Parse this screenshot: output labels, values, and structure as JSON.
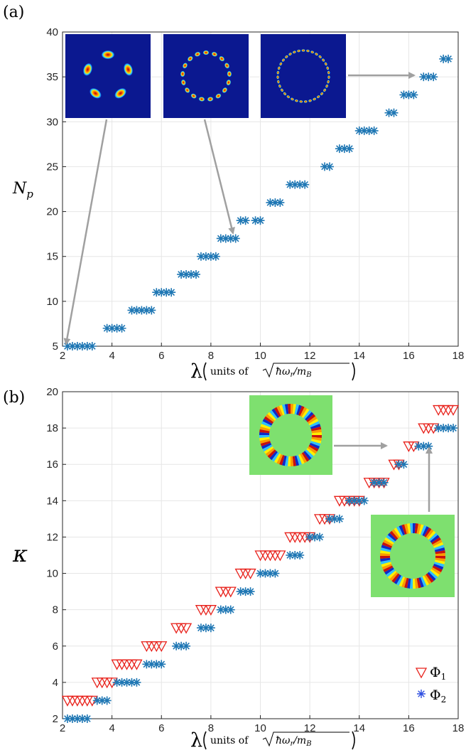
{
  "chart_data": [
    {
      "panel_label": "(a)",
      "type": "scatter",
      "xlabel_symbol": "λ",
      "xlabel_units": "units of",
      "xlabel_sqrt": "ħω",
      "xlabel_sqrt_sub_r": "r",
      "xlabel_sqrt_slash": "/m",
      "xlabel_sqrt_sub_b": "B",
      "ylabel_main": "N",
      "ylabel_sub": "p",
      "xlim": [
        2,
        18
      ],
      "ylim": [
        5,
        40
      ],
      "xticks": [
        "2",
        "4",
        "6",
        "8",
        "10",
        "12",
        "14",
        "16",
        "18"
      ],
      "yticks": [
        "5",
        "10",
        "15",
        "20",
        "25",
        "30",
        "35",
        "40"
      ],
      "grid": true,
      "series": [
        {
          "marker": "asterisk",
          "color": "#1f77b4",
          "x": [
            2.2,
            2.4,
            2.6,
            2.8,
            3.0,
            3.2,
            3.8,
            4.0,
            4.2,
            4.4,
            4.8,
            5.0,
            5.2,
            5.4,
            5.6,
            5.8,
            6.0,
            6.2,
            6.4,
            6.8,
            7.0,
            7.2,
            7.4,
            7.6,
            7.8,
            8.0,
            8.2,
            8.4,
            8.6,
            8.8,
            9.0,
            9.2,
            9.4,
            9.8,
            10.0,
            10.4,
            10.6,
            10.8,
            11.2,
            11.4,
            11.6,
            11.8,
            12.6,
            12.8,
            13.2,
            13.4,
            13.6,
            14.0,
            14.2,
            14.4,
            14.6,
            15.2,
            15.4,
            15.8,
            16.0,
            16.2,
            16.6,
            16.8,
            17.0,
            17.4,
            17.6
          ],
          "y": [
            5,
            5,
            5,
            5,
            5,
            5,
            7,
            7,
            7,
            7,
            9,
            9,
            9,
            9,
            9,
            11,
            11,
            11,
            11,
            13,
            13,
            13,
            13,
            15,
            15,
            15,
            15,
            17,
            17,
            17,
            17,
            19,
            19,
            19,
            19,
            21,
            21,
            21,
            23,
            23,
            23,
            23,
            25,
            25,
            27,
            27,
            27,
            29,
            29,
            29,
            29,
            31,
            31,
            33,
            33,
            33,
            35,
            35,
            35,
            37,
            37
          ]
        }
      ],
      "insets": [
        {
          "name": "five-lobe-density-inset",
          "lobes": 5
        },
        {
          "name": "seventeen-lobe-density-inset",
          "lobes": 17
        },
        {
          "name": "thirty-five-lobe-density-inset",
          "lobes": 35
        }
      ]
    },
    {
      "panel_label": "(b)",
      "type": "scatter",
      "xlabel_symbol": "λ",
      "xlabel_units": "units of",
      "xlabel_sqrt": "ħω",
      "xlabel_sqrt_sub_r": "r",
      "xlabel_sqrt_slash": "/m",
      "xlabel_sqrt_sub_b": "B",
      "ylabel_main": "κ",
      "xlim": [
        2,
        18
      ],
      "ylim": [
        2,
        20
      ],
      "xticks": [
        "2",
        "4",
        "6",
        "8",
        "10",
        "12",
        "14",
        "16",
        "18"
      ],
      "yticks": [
        "2",
        "4",
        "6",
        "8",
        "10",
        "12",
        "14",
        "16",
        "18",
        "20"
      ],
      "grid": true,
      "legend_position": "bottom-right",
      "series": [
        {
          "name": "Φ",
          "name_sub": "1",
          "marker": "triangle-down",
          "color": "#e8201a",
          "x": [
            2.2,
            2.4,
            2.6,
            2.8,
            3.0,
            3.2,
            3.4,
            3.6,
            3.8,
            4.0,
            4.2,
            4.4,
            4.6,
            4.8,
            5.0,
            5.4,
            5.6,
            5.8,
            6.0,
            6.6,
            6.8,
            7.0,
            7.6,
            7.8,
            8.0,
            8.4,
            8.6,
            8.8,
            9.2,
            9.4,
            9.6,
            10.0,
            10.2,
            10.4,
            10.6,
            10.8,
            11.2,
            11.4,
            11.6,
            11.8,
            12.0,
            12.4,
            12.6,
            12.8,
            13.2,
            13.4,
            13.6,
            13.8,
            14.0,
            14.4,
            14.6,
            14.8,
            15.0,
            15.4,
            15.6,
            16.0,
            16.2,
            16.6,
            16.8,
            17.0,
            17.2,
            17.4,
            17.6,
            17.8
          ],
          "y": [
            3,
            3,
            3,
            3,
            3,
            3,
            4,
            4,
            4,
            4,
            5,
            5,
            5,
            5,
            5,
            6,
            6,
            6,
            6,
            7,
            7,
            7,
            8,
            8,
            8,
            9,
            9,
            9,
            10,
            10,
            10,
            11,
            11,
            11,
            11,
            11,
            12,
            12,
            12,
            12,
            12,
            13,
            13,
            13,
            14,
            14,
            14,
            14,
            14,
            15,
            15,
            15,
            15,
            16,
            16,
            17,
            17,
            18,
            18,
            18,
            19,
            19,
            19,
            19
          ]
        },
        {
          "name": "Φ",
          "name_sub": "2",
          "marker": "asterisk",
          "color": "#1f77b4",
          "x": [
            2.2,
            2.4,
            2.6,
            2.8,
            3.0,
            3.4,
            3.6,
            3.8,
            4.2,
            4.4,
            4.6,
            4.8,
            5.0,
            5.4,
            5.6,
            5.8,
            6.0,
            6.6,
            6.8,
            7.0,
            7.6,
            7.8,
            8.0,
            8.4,
            8.6,
            8.8,
            9.2,
            9.4,
            9.6,
            10.0,
            10.2,
            10.4,
            10.6,
            11.2,
            11.4,
            11.6,
            12.0,
            12.2,
            12.4,
            12.8,
            13.0,
            13.2,
            13.6,
            13.8,
            14.0,
            14.2,
            14.6,
            14.8,
            15.0,
            15.6,
            15.8,
            16.4,
            16.6,
            16.8,
            17.2,
            17.4,
            17.6,
            17.8
          ],
          "y": [
            2,
            2,
            2,
            2,
            2,
            3,
            3,
            3,
            4,
            4,
            4,
            4,
            4,
            5,
            5,
            5,
            5,
            6,
            6,
            6,
            7,
            7,
            7,
            8,
            8,
            8,
            9,
            9,
            9,
            10,
            10,
            10,
            10,
            11,
            11,
            11,
            12,
            12,
            12,
            13,
            13,
            13,
            14,
            14,
            14,
            14,
            15,
            15,
            15,
            16,
            16,
            17,
            17,
            17,
            18,
            18,
            18,
            18
          ]
        }
      ],
      "insets": [
        {
          "name": "phase-ring-inset-upper",
          "stripes": 34
        },
        {
          "name": "phase-ring-inset-lower",
          "stripes": 36
        }
      ]
    }
  ]
}
